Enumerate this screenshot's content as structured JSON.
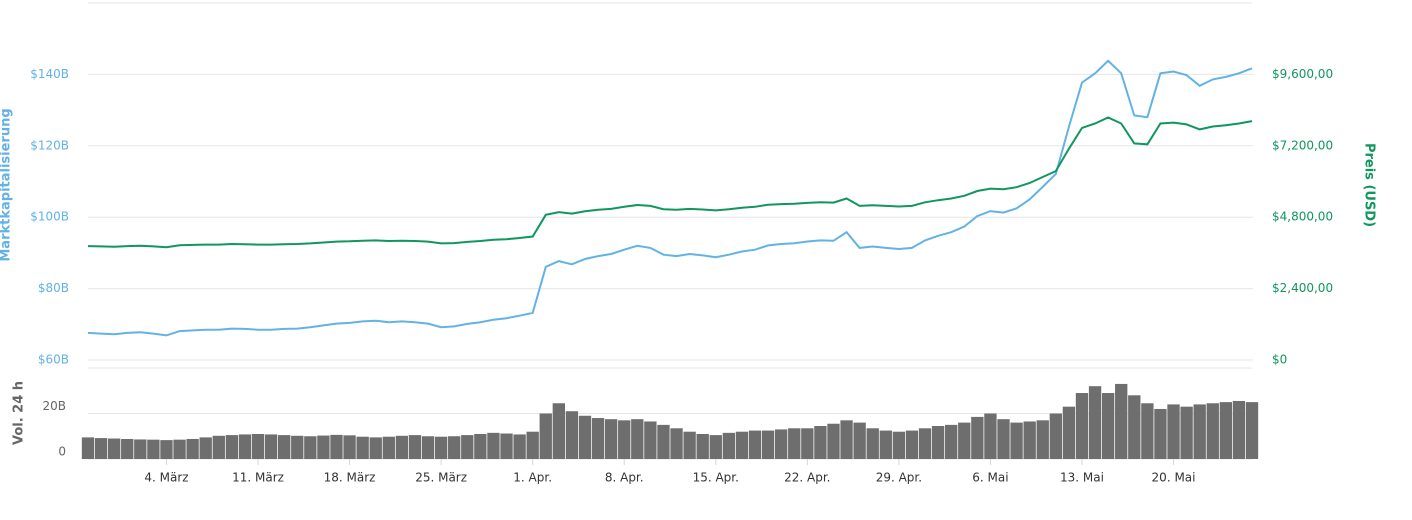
{
  "chart_data": {
    "type": "market",
    "y_label": "Marktkapitalisierung",
    "y2_label": "Preis (USD)",
    "volume_label": "Vol. 24 h",
    "categories": [
      null,
      null,
      null,
      null,
      null,
      null,
      "4. März",
      null,
      null,
      null,
      null,
      null,
      null,
      "11. März",
      null,
      null,
      null,
      null,
      null,
      null,
      "18. März",
      null,
      null,
      null,
      null,
      null,
      null,
      "25. März",
      null,
      null,
      null,
      null,
      null,
      null,
      "1. Apr.",
      null,
      null,
      null,
      null,
      null,
      null,
      "8. Apr.",
      null,
      null,
      null,
      null,
      null,
      null,
      "15. Apr.",
      null,
      null,
      null,
      null,
      null,
      null,
      "22. Apr.",
      null,
      null,
      null,
      null,
      null,
      null,
      "29. Apr.",
      null,
      null,
      null,
      null,
      null,
      null,
      "6. Mai",
      null,
      null,
      null,
      null,
      null,
      null,
      "13. Mai",
      null,
      null,
      null,
      null,
      null,
      null,
      "20. Mai",
      null,
      null,
      null,
      null,
      null,
      null
    ],
    "series": [
      {
        "name": "Marktkapitalisierung",
        "color": "#63b2e5",
        "axis": "y",
        "values": [
          67.6,
          67.4,
          67.2,
          67.6,
          67.8,
          67.4,
          66.9,
          68.1,
          68.3,
          68.5,
          68.5,
          68.8,
          68.7,
          68.5,
          68.5,
          68.7,
          68.8,
          69.2,
          69.7,
          70.2,
          70.4,
          70.8,
          71.0,
          70.6,
          70.8,
          70.6,
          70.2,
          69.2,
          69.4,
          70.1,
          70.6,
          71.3,
          71.7,
          72.4,
          73.2,
          86.1,
          87.7,
          86.8,
          88.3,
          89.1,
          89.7,
          90.9,
          92.0,
          91.4,
          89.5,
          89.1,
          89.7,
          89.3,
          88.8,
          89.5,
          90.4,
          90.9,
          92.1,
          92.5,
          92.7,
          93.2,
          93.5,
          93.4,
          95.8,
          91.4,
          91.8,
          91.4,
          91.1,
          91.4,
          93.5,
          94.8,
          95.8,
          97.4,
          100.3,
          101.7,
          101.3,
          102.5,
          105.0,
          108.5,
          112.1,
          125.3,
          137.7,
          140.3,
          143.8,
          140.3,
          128.5,
          128.0,
          140.3,
          140.8,
          139.8,
          136.8,
          138.6,
          139.3,
          140.3,
          141.7
        ]
      },
      {
        "name": "Preis (USD)",
        "color": "#11965f",
        "axis": "y2",
        "values": [
          3830,
          3820,
          3810,
          3830,
          3840,
          3820,
          3790,
          3860,
          3870,
          3880,
          3880,
          3900,
          3890,
          3880,
          3880,
          3890,
          3900,
          3920,
          3950,
          3980,
          3990,
          4010,
          4020,
          4000,
          4010,
          4000,
          3980,
          3920,
          3930,
          3970,
          4000,
          4040,
          4060,
          4100,
          4150,
          4880,
          4970,
          4920,
          5000,
          5050,
          5080,
          5150,
          5210,
          5180,
          5070,
          5050,
          5080,
          5060,
          5030,
          5070,
          5120,
          5150,
          5220,
          5240,
          5250,
          5280,
          5300,
          5290,
          5430,
          5180,
          5200,
          5180,
          5160,
          5180,
          5300,
          5370,
          5430,
          5520,
          5680,
          5760,
          5740,
          5810,
          5950,
          6150,
          6350,
          7100,
          7800,
          7950,
          8150,
          7950,
          7280,
          7250,
          7950,
          7980,
          7920,
          7750,
          7850,
          7890,
          7950,
          8030
        ]
      }
    ],
    "volume": {
      "color": "#6e6e6e",
      "values": [
        9.5,
        9.2,
        9.0,
        8.8,
        8.6,
        8.5,
        8.3,
        8.5,
        8.8,
        9.5,
        10.2,
        10.5,
        10.8,
        11.0,
        10.8,
        10.5,
        10.2,
        10.0,
        10.3,
        10.6,
        10.4,
        9.8,
        9.5,
        9.8,
        10.2,
        10.5,
        10.0,
        9.8,
        10.0,
        10.5,
        11.0,
        11.5,
        11.2,
        10.8,
        12.0,
        20.0,
        24.5,
        21.0,
        19.0,
        18.0,
        17.5,
        17.0,
        17.5,
        16.5,
        15.0,
        13.5,
        12.0,
        11.0,
        10.5,
        11.5,
        12.0,
        12.5,
        12.5,
        13.0,
        13.5,
        13.5,
        14.5,
        15.5,
        17.0,
        16.0,
        13.5,
        12.5,
        12.0,
        12.5,
        13.5,
        14.5,
        15.0,
        16.0,
        18.5,
        20.0,
        17.5,
        16.0,
        16.5,
        17.0,
        20.0,
        23.0,
        29.0,
        32.0,
        29.0,
        33.0,
        28.0,
        24.5,
        22.0,
        24.0,
        23.0,
        24.0,
        24.5,
        25.0,
        25.5,
        25.0
      ],
      "ylim": [
        0,
        40
      ],
      "yticks": [
        0,
        {
          "value": 20,
          "label": "20B"
        }
      ]
    },
    "ylim": [
      60,
      160
    ],
    "yticks": [
      {
        "value": 60,
        "label": "$60B"
      },
      {
        "value": 80,
        "label": "$80B"
      },
      {
        "value": 100,
        "label": "$100B"
      },
      {
        "value": 120,
        "label": "$120B"
      },
      {
        "value": 140,
        "label": "$140B"
      }
    ],
    "y2lim": [
      0,
      12000
    ],
    "y2ticks": [
      {
        "value": 0,
        "label": "$0"
      },
      {
        "value": 2400,
        "label": "$2,400,00"
      },
      {
        "value": 4800,
        "label": "$4,800,00"
      },
      {
        "value": 7200,
        "label": "$7,200,00"
      },
      {
        "value": 9600,
        "label": "$9,600,00"
      }
    ],
    "grid": true
  }
}
